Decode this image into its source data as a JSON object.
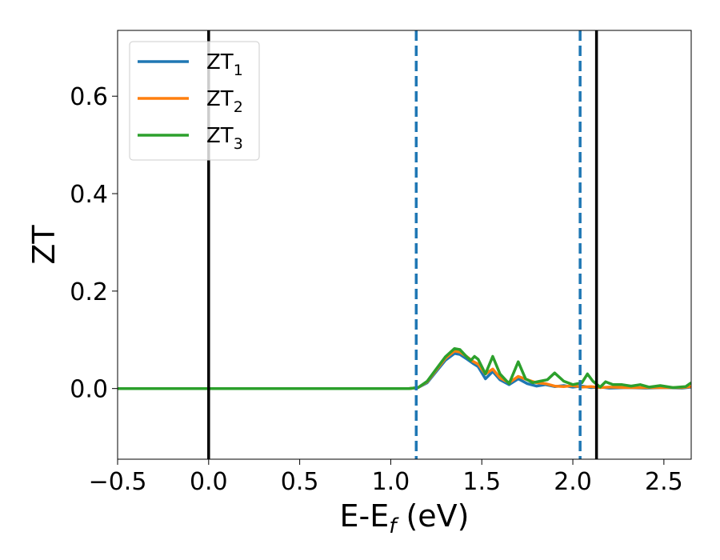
{
  "chart_data": {
    "type": "line",
    "title": "",
    "xlabel": {
      "base": "E-E",
      "sub": "f",
      "tail": " (eV)"
    },
    "ylabel": "ZT",
    "xlim": [
      -0.5,
      2.65
    ],
    "ylim": [
      -0.145,
      0.735
    ],
    "xticks": [
      -0.5,
      0.0,
      0.5,
      1.0,
      1.5,
      2.0,
      2.5
    ],
    "xtick_labels": [
      "−0.5",
      "0.0",
      "0.5",
      "1.0",
      "1.5",
      "2.0",
      "2.5"
    ],
    "yticks": [
      0.0,
      0.2,
      0.4,
      0.6
    ],
    "ytick_labels": [
      "0.0",
      "0.2",
      "0.4",
      "0.6"
    ],
    "grid": false,
    "legend_position": "top-left",
    "vlines": [
      {
        "x": 0.0,
        "style": "solid",
        "color": "#000000"
      },
      {
        "x": 2.13,
        "style": "solid",
        "color": "#000000"
      },
      {
        "x": 1.14,
        "style": "dashed",
        "color": "#1f77b4"
      },
      {
        "x": 2.04,
        "style": "dashed",
        "color": "#1f77b4"
      }
    ],
    "series": [
      {
        "name": "ZT",
        "sub": "1",
        "color": "#1f77b4",
        "points": [
          [
            -0.5,
            0
          ],
          [
            1.1,
            0
          ],
          [
            1.15,
            0.002
          ],
          [
            1.2,
            0.012
          ],
          [
            1.25,
            0.035
          ],
          [
            1.3,
            0.058
          ],
          [
            1.35,
            0.072
          ],
          [
            1.38,
            0.07
          ],
          [
            1.42,
            0.06
          ],
          [
            1.45,
            0.052
          ],
          [
            1.48,
            0.045
          ],
          [
            1.52,
            0.02
          ],
          [
            1.56,
            0.035
          ],
          [
            1.6,
            0.018
          ],
          [
            1.65,
            0.008
          ],
          [
            1.7,
            0.02
          ],
          [
            1.75,
            0.01
          ],
          [
            1.8,
            0.005
          ],
          [
            1.85,
            0.008
          ],
          [
            1.9,
            0.004
          ],
          [
            1.95,
            0.006
          ],
          [
            2.0,
            0.003
          ],
          [
            2.05,
            0.005
          ],
          [
            2.1,
            0.002
          ],
          [
            2.15,
            0.003
          ],
          [
            2.2,
            0.001
          ],
          [
            2.3,
            0.002
          ],
          [
            2.4,
            0.001
          ],
          [
            2.5,
            0.002
          ],
          [
            2.6,
            0.001
          ],
          [
            2.65,
            0.003
          ]
        ]
      },
      {
        "name": "ZT",
        "sub": "2",
        "color": "#ff7f0e",
        "points": [
          [
            -0.5,
            0
          ],
          [
            1.1,
            0
          ],
          [
            1.15,
            0.002
          ],
          [
            1.2,
            0.014
          ],
          [
            1.25,
            0.038
          ],
          [
            1.3,
            0.062
          ],
          [
            1.35,
            0.077
          ],
          [
            1.38,
            0.075
          ],
          [
            1.42,
            0.065
          ],
          [
            1.45,
            0.056
          ],
          [
            1.48,
            0.05
          ],
          [
            1.52,
            0.03
          ],
          [
            1.56,
            0.04
          ],
          [
            1.6,
            0.022
          ],
          [
            1.65,
            0.012
          ],
          [
            1.7,
            0.025
          ],
          [
            1.75,
            0.018
          ],
          [
            1.8,
            0.012
          ],
          [
            1.85,
            0.01
          ],
          [
            1.9,
            0.005
          ],
          [
            1.95,
            0.004
          ],
          [
            2.0,
            0.006
          ],
          [
            2.05,
            0.003
          ],
          [
            2.1,
            0.004
          ],
          [
            2.15,
            0.002
          ],
          [
            2.2,
            0.003
          ],
          [
            2.3,
            0.002
          ],
          [
            2.4,
            0.002
          ],
          [
            2.5,
            0.002
          ],
          [
            2.6,
            0.002
          ],
          [
            2.65,
            0.004
          ]
        ]
      },
      {
        "name": "ZT",
        "sub": "3",
        "color": "#2ca02c",
        "points": [
          [
            -0.5,
            0
          ],
          [
            1.1,
            0
          ],
          [
            1.15,
            0.002
          ],
          [
            1.2,
            0.015
          ],
          [
            1.25,
            0.04
          ],
          [
            1.3,
            0.065
          ],
          [
            1.35,
            0.082
          ],
          [
            1.38,
            0.08
          ],
          [
            1.42,
            0.064
          ],
          [
            1.44,
            0.058
          ],
          [
            1.46,
            0.066
          ],
          [
            1.48,
            0.06
          ],
          [
            1.52,
            0.03
          ],
          [
            1.56,
            0.066
          ],
          [
            1.6,
            0.03
          ],
          [
            1.65,
            0.01
          ],
          [
            1.7,
            0.055
          ],
          [
            1.74,
            0.02
          ],
          [
            1.78,
            0.012
          ],
          [
            1.82,
            0.015
          ],
          [
            1.86,
            0.018
          ],
          [
            1.9,
            0.032
          ],
          [
            1.95,
            0.015
          ],
          [
            2.0,
            0.008
          ],
          [
            2.05,
            0.012
          ],
          [
            2.08,
            0.03
          ],
          [
            2.11,
            0.015
          ],
          [
            2.15,
            0.003
          ],
          [
            2.18,
            0.014
          ],
          [
            2.22,
            0.008
          ],
          [
            2.27,
            0.008
          ],
          [
            2.32,
            0.005
          ],
          [
            2.37,
            0.008
          ],
          [
            2.42,
            0.003
          ],
          [
            2.48,
            0.006
          ],
          [
            2.55,
            0.002
          ],
          [
            2.62,
            0.004
          ],
          [
            2.65,
            0.012
          ]
        ]
      }
    ]
  }
}
